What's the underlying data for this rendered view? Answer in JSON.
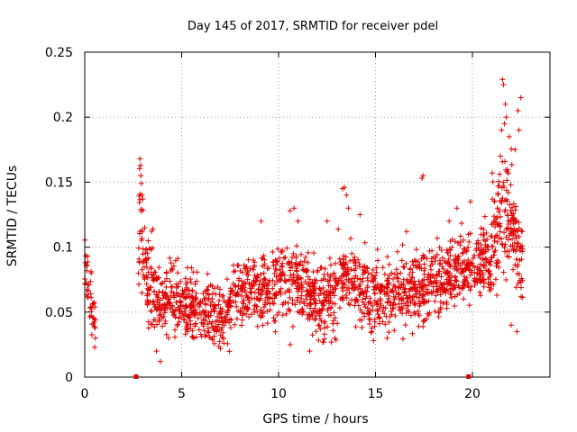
{
  "chart_data": {
    "type": "scatter",
    "title": "Day 145 of 2017, SRMTID for receiver pdel",
    "xlabel": "GPS time / hours",
    "ylabel": "SRMTID / TECUs",
    "xlim": [
      0,
      24
    ],
    "ylim": [
      0,
      0.25
    ],
    "xticks": [
      "0",
      "5",
      "10",
      "15",
      "20"
    ],
    "xtick_values": [
      0,
      5,
      10,
      15,
      20
    ],
    "yticks": [
      "0",
      "0.05",
      "0.1",
      "0.15",
      "0.2",
      "0.25"
    ],
    "ytick_values": [
      0,
      0.05,
      0.1,
      0.15,
      0.2,
      0.25
    ],
    "grid": true,
    "colors": {
      "series": "#e00000",
      "grid": "#a0a0a0"
    },
    "marker": "plus",
    "gap_markers": [
      2.65,
      19.8
    ],
    "series": [
      {
        "name": "SRMTID",
        "segments": [
          {
            "x0": 0.0,
            "x1": 0.55,
            "anchors": [
              [
                0.0,
                0.085
              ],
              [
                0.2,
                0.07
              ],
              [
                0.4,
                0.05
              ],
              [
                0.55,
                0.04
              ]
            ],
            "spread": 0.018,
            "count": 45
          },
          {
            "x0": 2.75,
            "x1": 3.6,
            "anchors": [
              [
                2.75,
                0.09
              ],
              [
                2.85,
                0.13
              ],
              [
                3.0,
                0.09
              ],
              [
                3.3,
                0.07
              ],
              [
                3.6,
                0.065
              ]
            ],
            "spread": 0.025,
            "count": 90
          },
          {
            "x0": 3.6,
            "x1": 7.5,
            "anchors": [
              [
                3.6,
                0.06
              ],
              [
                4.5,
                0.06
              ],
              [
                5.5,
                0.055
              ],
              [
                6.5,
                0.05
              ],
              [
                7.0,
                0.045
              ],
              [
                7.5,
                0.05
              ]
            ],
            "spread": 0.018,
            "count": 380
          },
          {
            "x0": 7.5,
            "x1": 13.0,
            "anchors": [
              [
                7.5,
                0.06
              ],
              [
                8.5,
                0.065
              ],
              [
                9.5,
                0.07
              ],
              [
                10.5,
                0.075
              ],
              [
                11.5,
                0.065
              ],
              [
                12.5,
                0.055
              ],
              [
                13.0,
                0.065
              ]
            ],
            "spread": 0.02,
            "count": 520
          },
          {
            "x0": 13.0,
            "x1": 18.0,
            "anchors": [
              [
                13.0,
                0.07
              ],
              [
                13.5,
                0.08
              ],
              [
                14.5,
                0.065
              ],
              [
                15.5,
                0.06
              ],
              [
                16.5,
                0.065
              ],
              [
                17.5,
                0.07
              ],
              [
                18.0,
                0.075
              ]
            ],
            "spread": 0.02,
            "count": 460
          },
          {
            "x0": 18.0,
            "x1": 20.0,
            "anchors": [
              [
                18.0,
                0.075
              ],
              [
                19.0,
                0.08
              ],
              [
                20.0,
                0.085
              ]
            ],
            "spread": 0.02,
            "count": 200
          },
          {
            "x0": 20.0,
            "x1": 21.0,
            "anchors": [
              [
                20.0,
                0.085
              ],
              [
                20.5,
                0.09
              ],
              [
                21.0,
                0.085
              ]
            ],
            "spread": 0.018,
            "count": 100
          },
          {
            "x0": 21.0,
            "x1": 22.6,
            "anchors": [
              [
                21.0,
                0.1
              ],
              [
                21.5,
                0.13
              ],
              [
                21.9,
                0.12
              ],
              [
                22.3,
                0.1
              ],
              [
                22.6,
                0.09
              ]
            ],
            "spread": 0.03,
            "count": 170
          }
        ],
        "spikes": [
          [
            2.85,
            0.168
          ],
          [
            2.88,
            0.163
          ],
          [
            2.9,
            0.155
          ],
          [
            2.92,
            0.149
          ],
          [
            2.95,
            0.14
          ],
          [
            3.0,
            0.137
          ],
          [
            9.1,
            0.12
          ],
          [
            10.6,
            0.128
          ],
          [
            10.8,
            0.13
          ],
          [
            11.0,
            0.12
          ],
          [
            12.5,
            0.12
          ],
          [
            13.3,
            0.145
          ],
          [
            13.4,
            0.146
          ],
          [
            13.5,
            0.14
          ],
          [
            13.6,
            0.13
          ],
          [
            14.2,
            0.125
          ],
          [
            17.4,
            0.153
          ],
          [
            17.45,
            0.155
          ],
          [
            16.6,
            0.112
          ],
          [
            18.8,
            0.12
          ],
          [
            19.2,
            0.13
          ],
          [
            19.9,
            0.135
          ],
          [
            21.55,
            0.229
          ],
          [
            21.6,
            0.225
          ],
          [
            21.7,
            0.21
          ],
          [
            21.75,
            0.2
          ],
          [
            21.65,
            0.195
          ],
          [
            21.5,
            0.19
          ],
          [
            21.9,
            0.185
          ],
          [
            22.35,
            0.205
          ],
          [
            22.5,
            0.215
          ],
          [
            22.4,
            0.19
          ],
          [
            22.2,
            0.175
          ],
          [
            21.45,
            0.17
          ],
          [
            3.9,
            0.012
          ],
          [
            3.7,
            0.02
          ],
          [
            7.0,
            0.022
          ],
          [
            10.6,
            0.025
          ],
          [
            11.6,
            0.02
          ],
          [
            12.9,
            0.03
          ],
          [
            14.9,
            0.028
          ],
          [
            15.6,
            0.03
          ],
          [
            22.0,
            0.04
          ],
          [
            22.3,
            0.035
          ],
          [
            0.55,
            0.03
          ]
        ]
      }
    ]
  }
}
